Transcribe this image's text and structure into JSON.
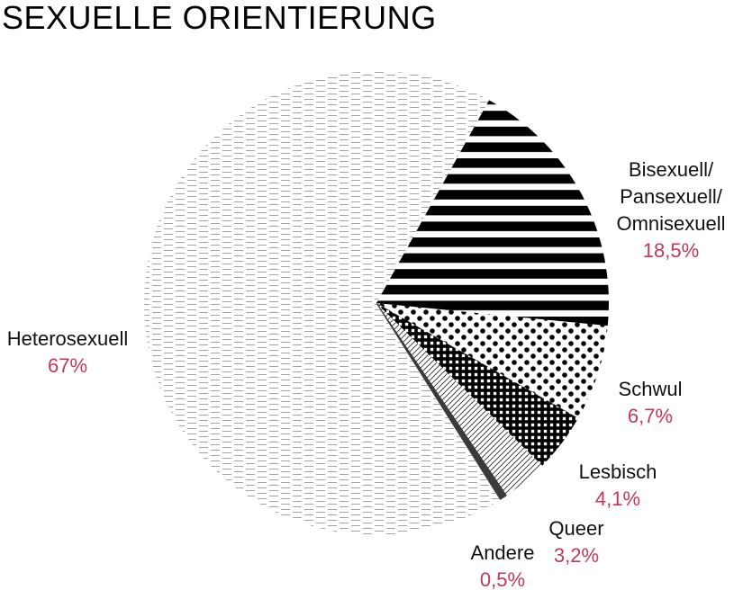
{
  "chart_data": {
    "type": "pie",
    "title": "SEXUELLE ORIENTIERUNG",
    "slices": [
      {
        "name_lines": [
          "Bisexuell/",
          "Pansexuell/",
          "Omnisexuell"
        ],
        "value": 18.5,
        "value_label": "18,5%",
        "pattern": "stripes"
      },
      {
        "name_lines": [
          "Schwul"
        ],
        "value": 6.7,
        "value_label": "6,7%",
        "pattern": "dots"
      },
      {
        "name_lines": [
          "Lesbisch"
        ],
        "value": 4.1,
        "value_label": "4,1%",
        "pattern": "grid"
      },
      {
        "name_lines": [
          "Queer"
        ],
        "value": 3.2,
        "value_label": "3,2%",
        "pattern": "diagonal"
      },
      {
        "name_lines": [
          "Andere"
        ],
        "value": 0.5,
        "value_label": "0,5%",
        "pattern": "solid"
      },
      {
        "name_lines": [
          "Heterosexuell"
        ],
        "value": 67,
        "value_label": "67%",
        "pattern": "dashes"
      }
    ],
    "value_label_color": "#c0395a",
    "label_color": "#111111"
  }
}
